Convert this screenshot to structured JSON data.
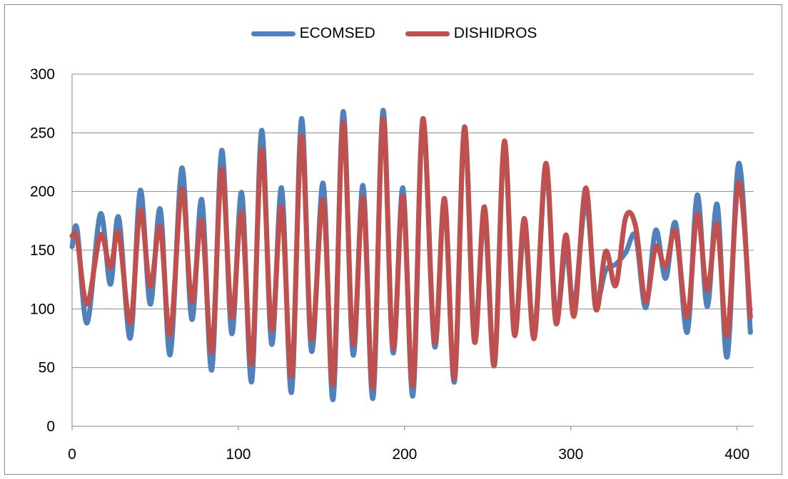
{
  "chart_data": {
    "type": "line",
    "title": "",
    "xlabel": "",
    "ylabel": "",
    "xlim": [
      0,
      410
    ],
    "ylim": [
      0,
      300
    ],
    "x_ticks": [
      0,
      100,
      200,
      300,
      400
    ],
    "y_ticks": [
      0,
      50,
      100,
      150,
      200,
      250,
      300
    ],
    "x_tick_labels": [
      "0",
      "100",
      "200",
      "300",
      "400"
    ],
    "y_tick_labels": [
      "0",
      "50",
      "100",
      "150",
      "200",
      "250",
      "300"
    ],
    "grid": "horizontal",
    "legend_position": "top",
    "series": [
      {
        "name": "ECOMSED",
        "color": "#4f81bd",
        "points": [
          [
            0,
            153
          ],
          [
            3,
            168
          ],
          [
            9,
            88
          ],
          [
            17,
            181
          ],
          [
            23,
            121
          ],
          [
            28,
            178
          ],
          [
            35,
            75
          ],
          [
            41,
            201
          ],
          [
            47,
            104
          ],
          [
            53,
            185
          ],
          [
            59,
            61
          ],
          [
            66,
            220
          ],
          [
            72,
            91
          ],
          [
            78,
            193
          ],
          [
            84,
            48
          ],
          [
            90,
            235
          ],
          [
            96,
            79
          ],
          [
            102,
            199
          ],
          [
            108,
            38
          ],
          [
            114,
            252
          ],
          [
            120,
            70
          ],
          [
            126,
            203
          ],
          [
            132,
            29
          ],
          [
            138,
            262
          ],
          [
            144,
            64
          ],
          [
            151,
            207
          ],
          [
            157,
            23
          ],
          [
            163,
            268
          ],
          [
            169,
            61
          ],
          [
            175,
            205
          ],
          [
            181,
            24
          ],
          [
            187,
            269
          ],
          [
            193,
            63
          ],
          [
            199,
            203
          ],
          [
            205,
            26
          ],
          [
            211,
            262
          ],
          [
            218,
            68
          ],
          [
            224,
            193
          ],
          [
            230,
            38
          ],
          [
            236,
            253
          ],
          [
            242,
            80
          ],
          [
            248,
            180
          ],
          [
            254,
            52
          ],
          [
            260,
            241
          ],
          [
            266,
            82
          ],
          [
            272,
            168
          ],
          [
            278,
            80
          ],
          [
            285,
            218
          ],
          [
            291,
            94
          ],
          [
            297,
            150
          ],
          [
            302,
            103
          ],
          [
            309,
            191
          ],
          [
            315,
            109
          ],
          [
            321,
            133
          ],
          [
            327,
            138
          ],
          [
            333,
            148
          ],
          [
            339,
            162
          ],
          [
            345,
            101
          ],
          [
            351,
            167
          ],
          [
            357,
            126
          ],
          [
            363,
            173
          ],
          [
            370,
            80
          ],
          [
            376,
            197
          ],
          [
            382,
            102
          ],
          [
            388,
            189
          ],
          [
            394,
            59
          ],
          [
            401,
            224
          ],
          [
            408,
            80
          ]
        ]
      },
      {
        "name": "DISHIDROS",
        "color": "#c0504d",
        "points": [
          [
            0,
            162
          ],
          [
            3,
            160
          ],
          [
            9,
            104
          ],
          [
            17,
            163
          ],
          [
            23,
            135
          ],
          [
            28,
            165
          ],
          [
            35,
            88
          ],
          [
            41,
            184
          ],
          [
            47,
            119
          ],
          [
            53,
            170
          ],
          [
            59,
            78
          ],
          [
            66,
            202
          ],
          [
            72,
            106
          ],
          [
            78,
            175
          ],
          [
            84,
            63
          ],
          [
            90,
            219
          ],
          [
            96,
            93
          ],
          [
            102,
            182
          ],
          [
            108,
            53
          ],
          [
            114,
            236
          ],
          [
            120,
            82
          ],
          [
            126,
            187
          ],
          [
            132,
            43
          ],
          [
            138,
            247
          ],
          [
            144,
            74
          ],
          [
            151,
            193
          ],
          [
            157,
            36
          ],
          [
            163,
            259
          ],
          [
            169,
            70
          ],
          [
            175,
            195
          ],
          [
            181,
            33
          ],
          [
            187,
            262
          ],
          [
            193,
            67
          ],
          [
            199,
            196
          ],
          [
            205,
            35
          ],
          [
            211,
            262
          ],
          [
            218,
            72
          ],
          [
            224,
            194
          ],
          [
            230,
            41
          ],
          [
            236,
            255
          ],
          [
            242,
            72
          ],
          [
            248,
            187
          ],
          [
            254,
            52
          ],
          [
            260,
            243
          ],
          [
            266,
            78
          ],
          [
            272,
            177
          ],
          [
            278,
            75
          ],
          [
            285,
            224
          ],
          [
            291,
            88
          ],
          [
            297,
            163
          ],
          [
            302,
            94
          ],
          [
            309,
            203
          ],
          [
            315,
            100
          ],
          [
            321,
            149
          ],
          [
            327,
            120
          ],
          [
            333,
            178
          ],
          [
            339,
            170
          ],
          [
            345,
            106
          ],
          [
            351,
            153
          ],
          [
            357,
            136
          ],
          [
            363,
            166
          ],
          [
            370,
            93
          ],
          [
            376,
            181
          ],
          [
            382,
            116
          ],
          [
            388,
            172
          ],
          [
            394,
            77
          ],
          [
            401,
            208
          ],
          [
            408,
            93
          ]
        ]
      }
    ]
  }
}
